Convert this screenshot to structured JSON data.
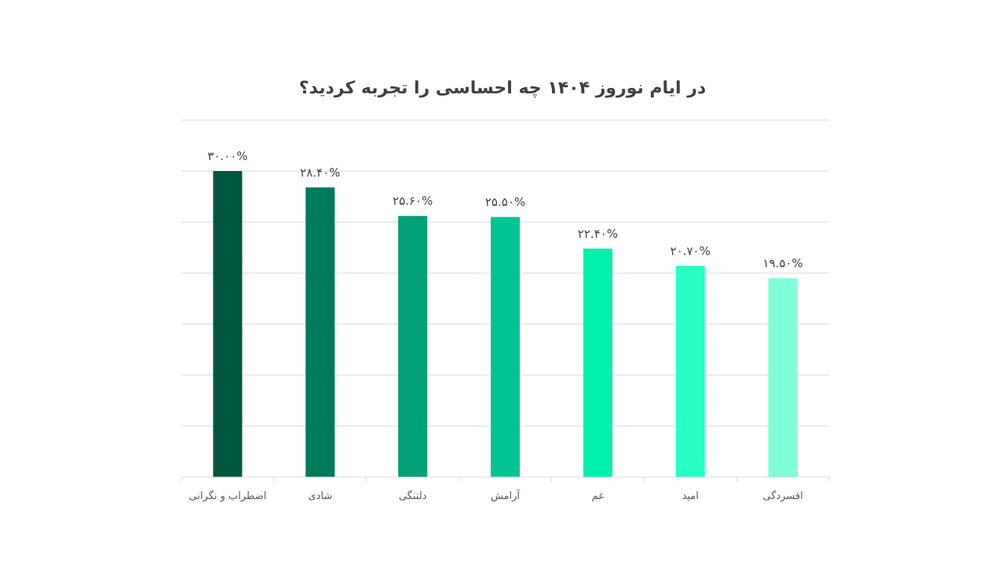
{
  "chart_data": {
    "type": "bar",
    "title": "در ایام نوروز ۱۴۰۴ چه احساسی را تجربه کردید؟",
    "categories": [
      "اضطراب و نگرانی",
      "شادی",
      "دلتنگی",
      "آرامش",
      "غم",
      "امید",
      "افسردگی"
    ],
    "values": [
      30.0,
      28.4,
      25.6,
      25.5,
      22.4,
      20.7,
      19.5
    ],
    "data_labels": [
      "۳۰.۰۰%",
      "۲۸.۴۰%",
      "۲۵.۶۰%",
      "۲۵.۵۰%",
      "۲۲.۴۰%",
      "۲۰.۷۰%",
      "۱۹.۵۰%"
    ],
    "colors": [
      "#00573f",
      "#007a5c",
      "#00a078",
      "#00c494",
      "#00f0b0",
      "#26ffc6",
      "#7fffd9"
    ],
    "xlabel": "",
    "ylabel": "",
    "ylim": [
      0,
      35
    ],
    "y_tick_step": 5,
    "grid": true,
    "legend": "none"
  }
}
